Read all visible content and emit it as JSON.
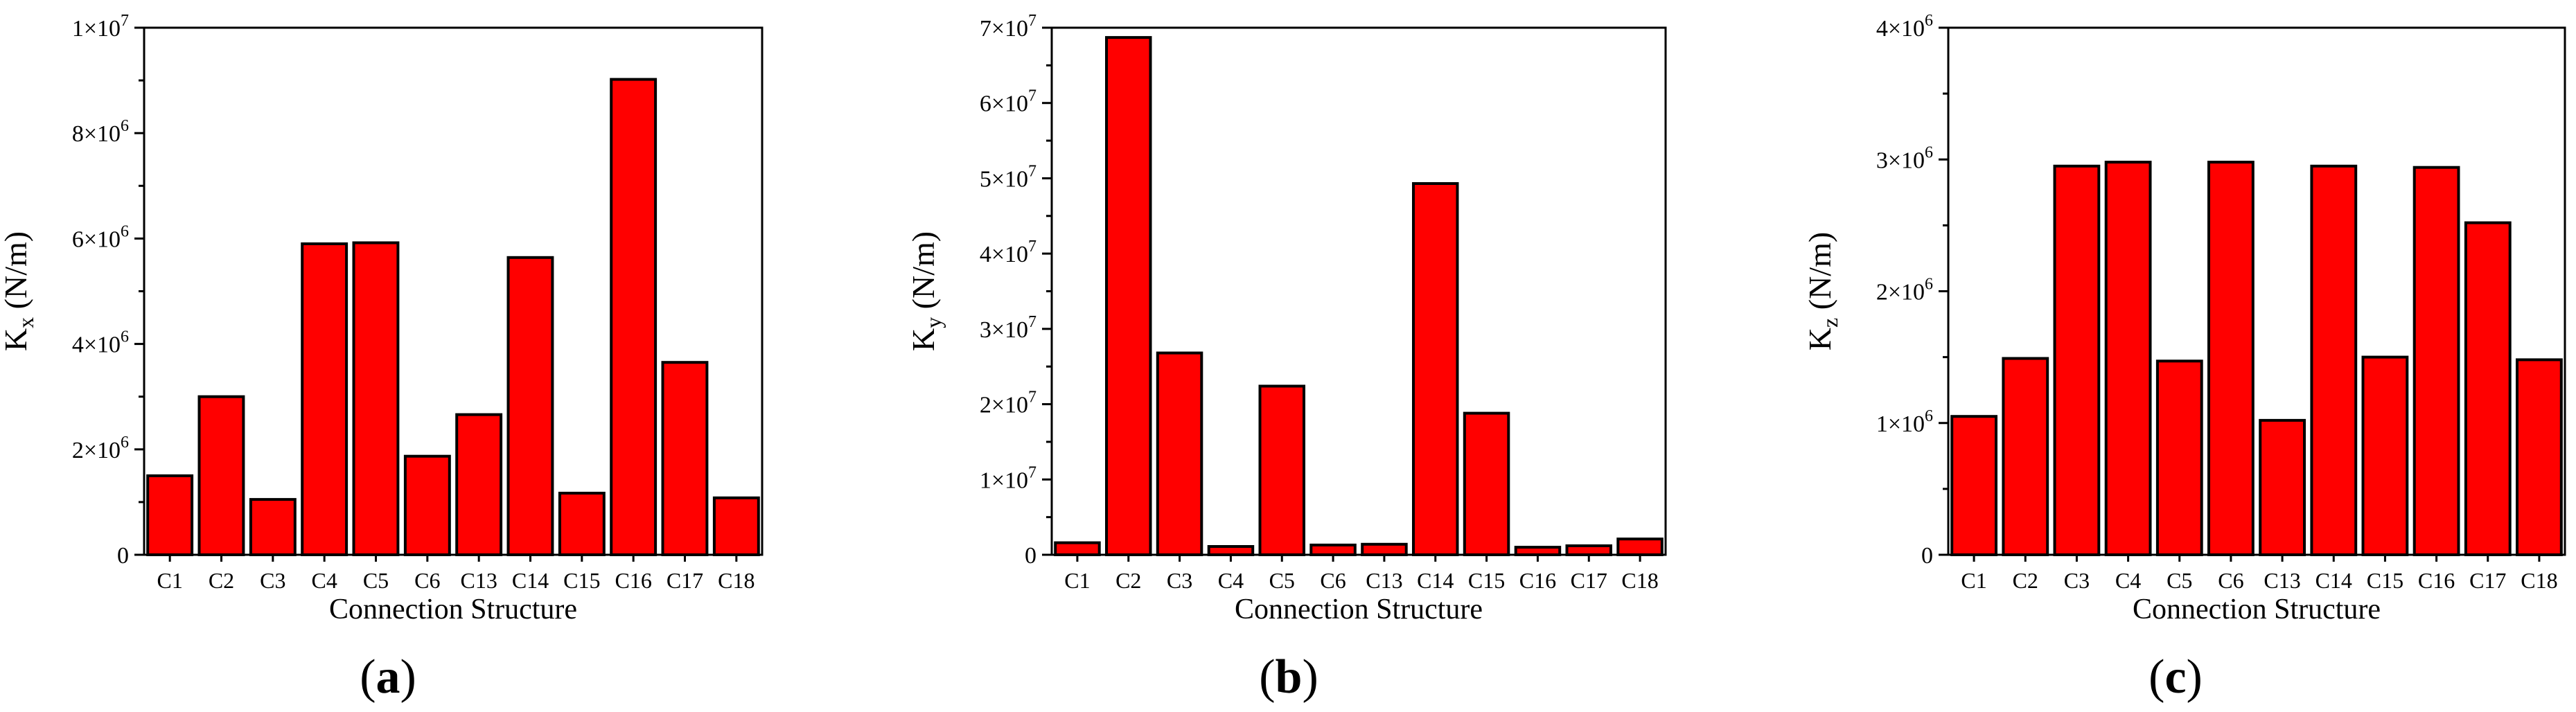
{
  "chart_data": [
    {
      "type": "bar",
      "panel_label": "(a)",
      "categories": [
        "C1",
        "C2",
        "C3",
        "C4",
        "C5",
        "C6",
        "C13",
        "C14",
        "C15",
        "C16",
        "C17",
        "C18"
      ],
      "values": [
        1500000,
        3000000,
        1050000,
        5900000,
        5920000,
        1870000,
        2660000,
        5640000,
        1170000,
        9020000,
        3650000,
        1080000
      ],
      "title": "",
      "xlabel": "Connection Structure",
      "ylabel": {
        "base": "K",
        "sub": "x",
        "unit": " (N/m)"
      },
      "ylim": [
        0,
        10000000
      ],
      "ticks": [
        {
          "value": 0,
          "mantissa": "0",
          "exp": ""
        },
        {
          "value": 2000000,
          "mantissa": "2×10",
          "exp": "6"
        },
        {
          "value": 4000000,
          "mantissa": "4×10",
          "exp": "6"
        },
        {
          "value": 6000000,
          "mantissa": "6×10",
          "exp": "6"
        },
        {
          "value": 8000000,
          "mantissa": "8×10",
          "exp": "6"
        },
        {
          "value": 10000000,
          "mantissa": "1×10",
          "exp": "7"
        }
      ],
      "bar_color": "#ff0000",
      "grid": false
    },
    {
      "type": "bar",
      "panel_label": "(b)",
      "categories": [
        "C1",
        "C2",
        "C3",
        "C4",
        "C5",
        "C6",
        "C13",
        "C14",
        "C15",
        "C16",
        "C17",
        "C18"
      ],
      "values": [
        1600000,
        68700000,
        26800000,
        1100000,
        22400000,
        1300000,
        1400000,
        49300000,
        18800000,
        1000000,
        1200000,
        2100000
      ],
      "title": "",
      "xlabel": "Connection Structure",
      "ylabel": {
        "base": "K",
        "sub": "y",
        "unit": " (N/m)"
      },
      "ylim": [
        0,
        70000000
      ],
      "ticks": [
        {
          "value": 0,
          "mantissa": "0",
          "exp": ""
        },
        {
          "value": 10000000,
          "mantissa": "1×10",
          "exp": "7"
        },
        {
          "value": 20000000,
          "mantissa": "2×10",
          "exp": "7"
        },
        {
          "value": 30000000,
          "mantissa": "3×10",
          "exp": "7"
        },
        {
          "value": 40000000,
          "mantissa": "4×10",
          "exp": "7"
        },
        {
          "value": 50000000,
          "mantissa": "5×10",
          "exp": "7"
        },
        {
          "value": 60000000,
          "mantissa": "6×10",
          "exp": "7"
        },
        {
          "value": 70000000,
          "mantissa": "7×10",
          "exp": "7"
        }
      ],
      "bar_color": "#ff0000",
      "grid": false
    },
    {
      "type": "bar",
      "panel_label": "(c)",
      "categories": [
        "C1",
        "C2",
        "C3",
        "C4",
        "C5",
        "C6",
        "C13",
        "C14",
        "C15",
        "C16",
        "C17",
        "C18"
      ],
      "values": [
        1050000,
        1490000,
        2950000,
        2980000,
        1470000,
        2980000,
        1020000,
        2950000,
        1500000,
        2940000,
        2520000,
        1480000
      ],
      "title": "",
      "xlabel": "Connection Structure",
      "ylabel": {
        "base": "K",
        "sub": "z",
        "unit": " (N/m)"
      },
      "ylim": [
        0,
        4000000
      ],
      "ticks": [
        {
          "value": 0,
          "mantissa": "0",
          "exp": ""
        },
        {
          "value": 1000000,
          "mantissa": "1×10",
          "exp": "6"
        },
        {
          "value": 2000000,
          "mantissa": "2×10",
          "exp": "6"
        },
        {
          "value": 3000000,
          "mantissa": "3×10",
          "exp": "6"
        },
        {
          "value": 4000000,
          "mantissa": "4×10",
          "exp": "6"
        }
      ],
      "bar_color": "#ff0000",
      "grid": false
    }
  ]
}
